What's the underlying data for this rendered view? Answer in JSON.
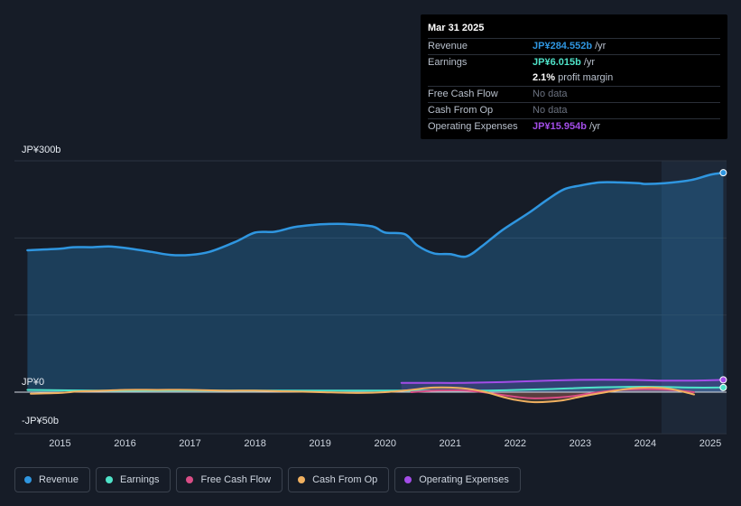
{
  "chart_data": {
    "type": "area",
    "y_ticks": [
      "JP¥300b",
      "JP¥0",
      "-JP¥50b"
    ],
    "ylim": [
      -50,
      300
    ],
    "x_ticks": [
      "2015",
      "2016",
      "2017",
      "2018",
      "2019",
      "2020",
      "2021",
      "2022",
      "2023",
      "2024",
      "2025"
    ],
    "xlim": [
      2014.3,
      2025.25
    ],
    "series": [
      {
        "name": "Revenue",
        "color": "#2f96e0",
        "x": [
          2014.5,
          2015.0,
          2015.2,
          2015.5,
          2015.75,
          2016.0,
          2016.4,
          2016.7,
          2017.0,
          2017.3,
          2017.7,
          2018.0,
          2018.3,
          2018.6,
          2018.9,
          2019.1,
          2019.4,
          2019.8,
          2020.0,
          2020.3,
          2020.5,
          2020.75,
          2021.0,
          2021.25,
          2021.5,
          2021.8,
          2022.2,
          2022.5,
          2022.75,
          2023.0,
          2023.3,
          2023.6,
          2023.9,
          2024.0,
          2024.3,
          2024.7,
          2025.0,
          2025.2
        ],
        "values": [
          184,
          186,
          188,
          188,
          189,
          187,
          182,
          178,
          178,
          182,
          195,
          207,
          208,
          214,
          217,
          218,
          218,
          215,
          207,
          205,
          190,
          180,
          179,
          176,
          190,
          210,
          232,
          250,
          263,
          268,
          272,
          272,
          271,
          270,
          271,
          275,
          282,
          284.6
        ]
      },
      {
        "name": "Earnings",
        "color": "#4fe3c9",
        "x": [
          2014.5,
          2015.5,
          2016.5,
          2017.5,
          2018.5,
          2019.5,
          2020.5,
          2021.5,
          2022.5,
          2023.2,
          2024.0,
          2024.7,
          2025.2
        ],
        "values": [
          3,
          2,
          2,
          2,
          2,
          2,
          2,
          2,
          4,
          6,
          7,
          6,
          6.0
        ]
      },
      {
        "name": "Free Cash Flow",
        "color": "#d94d86",
        "x": [
          2020.4,
          2020.8,
          2021.2,
          2021.5,
          2022.0,
          2022.3,
          2022.8,
          2023.2,
          2023.6,
          2024.0,
          2024.4,
          2024.75
        ],
        "values": [
          0,
          2,
          2,
          0,
          -6,
          -8,
          -6,
          -1,
          3,
          4,
          3,
          0
        ]
      },
      {
        "name": "Cash From Op",
        "color": "#f0b060",
        "x": [
          2014.55,
          2015.0,
          2015.3,
          2015.7,
          2016.0,
          2016.5,
          2017.0,
          2017.5,
          2018.0,
          2018.5,
          2019.0,
          2019.6,
          2020.0,
          2020.4,
          2020.75,
          2021.2,
          2021.5,
          2021.8,
          2022.0,
          2022.3,
          2022.7,
          2023.0,
          2023.4,
          2023.8,
          2024.1,
          2024.4,
          2024.75
        ],
        "values": [
          -2,
          -1,
          1,
          2,
          3,
          3,
          3,
          2,
          2,
          1,
          0,
          -1,
          0,
          3,
          6,
          5,
          1,
          -6,
          -10,
          -13,
          -11,
          -6,
          0,
          5,
          6,
          4,
          -3
        ]
      },
      {
        "name": "Operating Expenses",
        "color": "#a34de8",
        "x": [
          2020.25,
          2020.7,
          2021.2,
          2021.8,
          2022.5,
          2023.0,
          2023.7,
          2024.2,
          2024.7,
          2025.2
        ],
        "values": [
          12,
          12,
          12,
          13,
          15,
          16,
          16,
          15,
          15,
          15.95
        ]
      }
    ],
    "tooltip": {
      "date": "Mar 31 2025",
      "rows": [
        {
          "label": "Revenue",
          "value": "JP¥284.552b",
          "unit": "/yr",
          "color": "#2f96e0"
        },
        {
          "label": "Earnings",
          "value": "JP¥6.015b",
          "unit": "/yr",
          "color": "#4fe3c9"
        },
        {
          "label": "",
          "value": "2.1%",
          "unit": "profit margin",
          "color": "#ffffff"
        },
        {
          "label": "Free Cash Flow",
          "value": "No data",
          "unit": "",
          "color": "#6b7280"
        },
        {
          "label": "Cash From Op",
          "value": "No data",
          "unit": "",
          "color": "#6b7280"
        },
        {
          "label": "Operating Expenses",
          "value": "JP¥15.954b",
          "unit": "/yr",
          "color": "#a34de8"
        }
      ]
    },
    "legend_placement": "bottom",
    "grid": true
  }
}
